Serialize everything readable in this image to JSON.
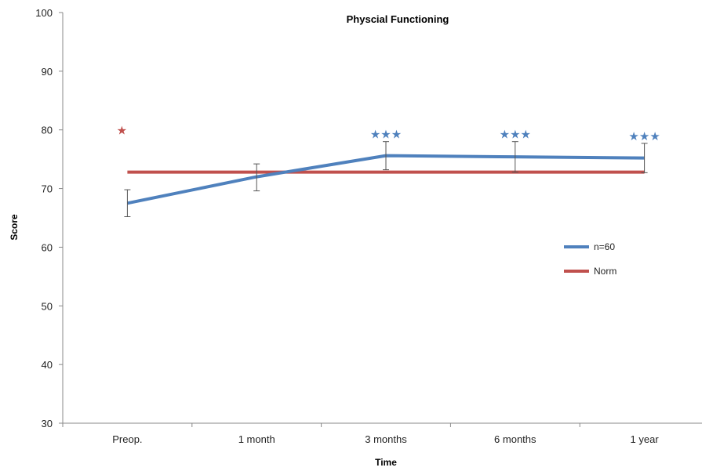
{
  "chart_data": {
    "type": "line",
    "title": "Physcial Functioning",
    "xlabel": "Time",
    "ylabel": "Score",
    "categories": [
      "Preop.",
      "1 month",
      "3 months",
      "6 months",
      "1 year"
    ],
    "ylim": [
      30,
      100
    ],
    "yticks": [
      30,
      40,
      50,
      60,
      70,
      80,
      90,
      100
    ],
    "grid": false,
    "legend_position": "right",
    "series": [
      {
        "name": "n=60",
        "color": "#4f81bd",
        "values": [
          67.5,
          72.0,
          75.6,
          75.4,
          75.2
        ],
        "error_upper": [
          69.8,
          74.2,
          78.0,
          78.0,
          77.7
        ],
        "error_lower": [
          65.2,
          69.6,
          73.2,
          72.8,
          72.7
        ],
        "annotations": [
          "",
          "",
          "***",
          "***",
          "***"
        ]
      },
      {
        "name": "Norm",
        "color": "#c0504d",
        "values": [
          72.8,
          72.8,
          72.8,
          72.8,
          72.8
        ],
        "annotations": [
          "*",
          "",
          "",
          "",
          ""
        ]
      }
    ]
  }
}
